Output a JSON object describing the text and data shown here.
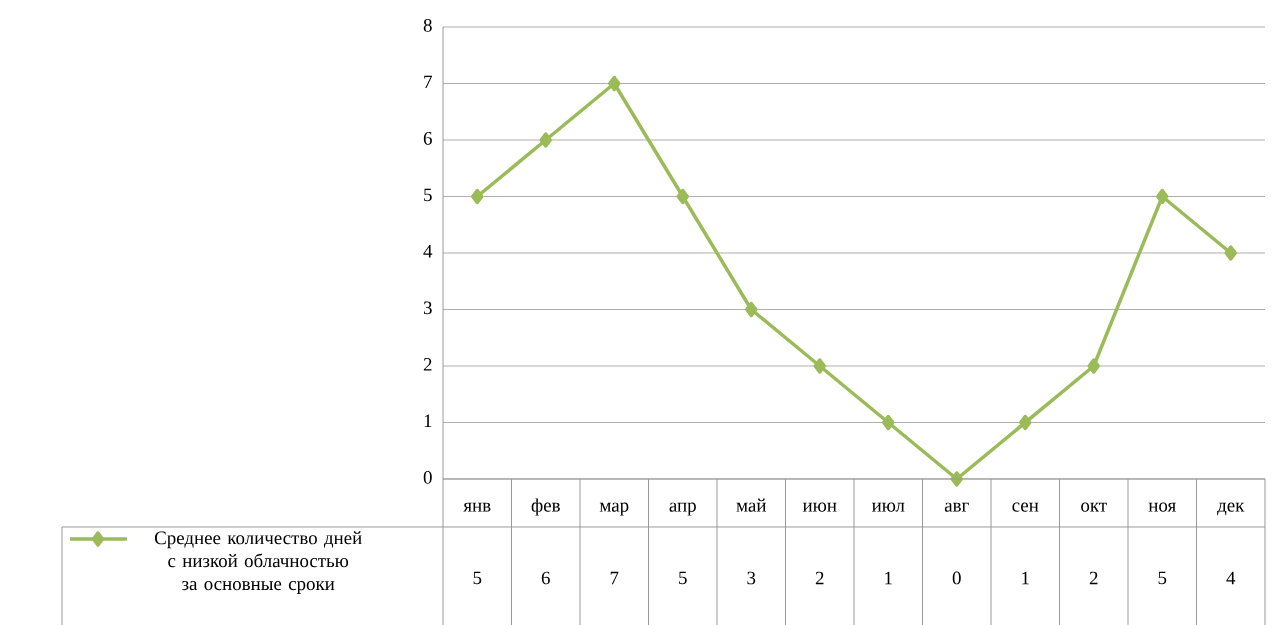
{
  "chart_data": {
    "type": "line",
    "categories": [
      "янв",
      "фев",
      "мар",
      "апр",
      "май",
      "июн",
      "июл",
      "авг",
      "сен",
      "окт",
      "ноя",
      "дек"
    ],
    "series": [
      {
        "name": "Среднее количество дней с низкой облачностью за основные сроки",
        "color": "#9bbb59",
        "values": [
          5,
          6,
          7,
          5,
          3,
          2,
          1,
          0,
          1,
          2,
          5,
          4
        ]
      }
    ],
    "ylim": [
      0,
      8
    ],
    "yticks": [
      0,
      1,
      2,
      3,
      4,
      5,
      6,
      7,
      8
    ],
    "grid": "y",
    "legend": "bottom",
    "marker": "diamond",
    "line_style": "solid",
    "data_labels": true
  }
}
